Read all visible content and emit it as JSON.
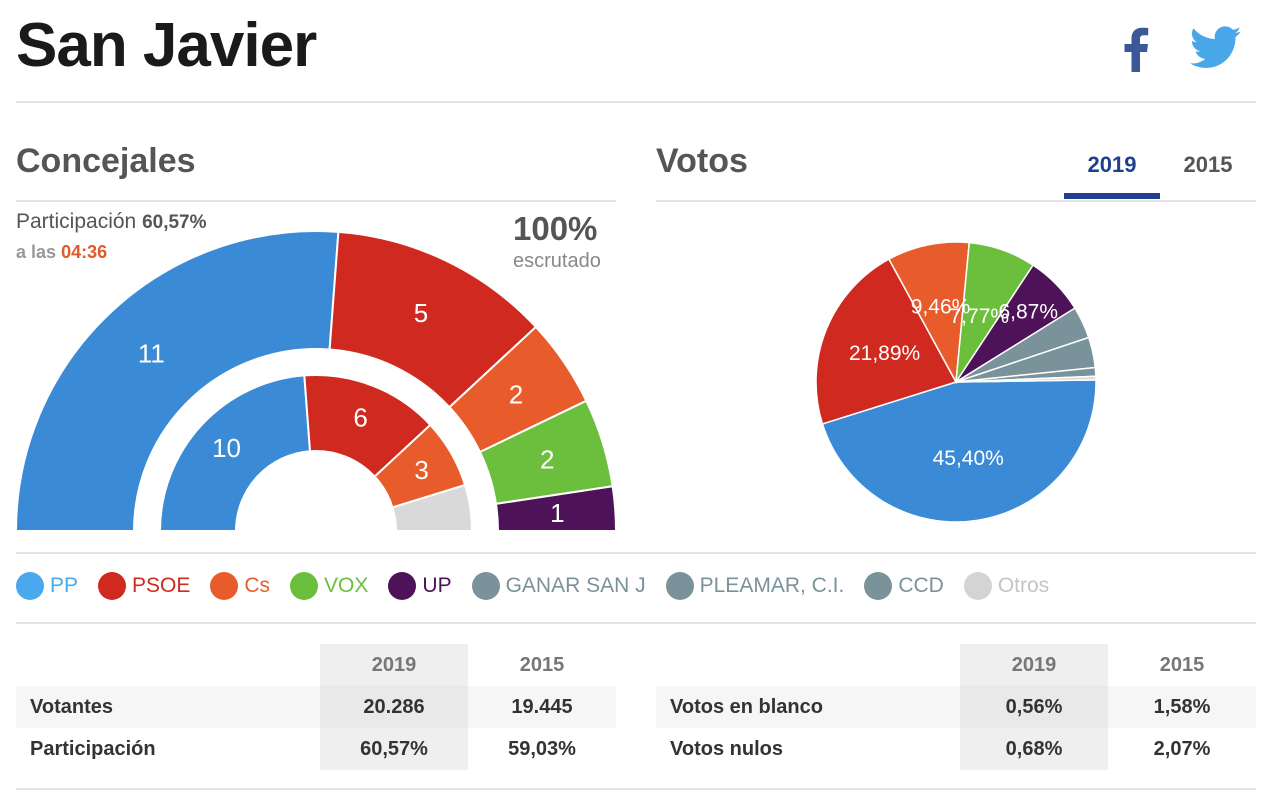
{
  "header": {
    "title": "San Javier"
  },
  "concejales": {
    "title": "Concejales",
    "participacion_label": "Participación",
    "participacion_value": "60,57%",
    "hora_prefix": "a las",
    "hora": "04:36",
    "escrutado_pct": "100%",
    "escrutado_label": "escrutado"
  },
  "votos": {
    "title": "Votos",
    "tabs": [
      {
        "label": "2019",
        "active": true
      },
      {
        "label": "2015",
        "active": false
      }
    ]
  },
  "colors": {
    "PP": "#3b8ad6",
    "PSOE": "#d02a20",
    "Cs": "#e85c2c",
    "VOX": "#6cbf3c",
    "UP": "#4d1257",
    "GANAR": "#7a9299",
    "PLEAMAR": "#7a9299",
    "CCD": "#7a9299",
    "Otros": "#d9d9d9"
  },
  "chart_data": [
    {
      "type": "pie",
      "title": "Concejales 2019",
      "subtype": "hemicycle-outer",
      "categories": [
        "PP",
        "PSOE",
        "Cs",
        "VOX",
        "UP"
      ],
      "values": [
        11,
        5,
        2,
        2,
        1
      ]
    },
    {
      "type": "pie",
      "title": "Concejales 2015",
      "subtype": "hemicycle-inner",
      "categories": [
        "PP",
        "PSOE",
        "Cs",
        "Otros"
      ],
      "values": [
        10,
        6,
        3,
        2
      ]
    },
    {
      "type": "pie",
      "title": "Votos 2019",
      "categories": [
        "PP",
        "PSOE",
        "Cs",
        "VOX",
        "UP",
        "GANAR SAN J",
        "PLEAMAR, C.I.",
        "CCD",
        "Otros"
      ],
      "values": [
        45.4,
        21.89,
        9.46,
        7.77,
        6.87,
        3.7,
        3.5,
        1.0,
        0.41
      ],
      "labels": [
        "45,40%",
        "21,89%",
        "9,46%",
        "7,77%",
        "6,87%",
        "",
        "",
        "",
        ""
      ]
    }
  ],
  "legend": [
    {
      "name": "PP",
      "color": "#4aa8ee"
    },
    {
      "name": "PSOE",
      "color": "#d02a20"
    },
    {
      "name": "Cs",
      "color": "#e85c2c"
    },
    {
      "name": "VOX",
      "color": "#6cbf3c"
    },
    {
      "name": "UP",
      "color": "#4d1257"
    },
    {
      "name": "GANAR SAN J",
      "color": "#7a9299"
    },
    {
      "name": "PLEAMAR, C.I.",
      "color": "#7a9299"
    },
    {
      "name": "CCD",
      "color": "#7a9299"
    },
    {
      "name": "Otros",
      "color": "#d4d4d4"
    }
  ],
  "table_left": {
    "years": [
      "2019",
      "2015"
    ],
    "rows": [
      {
        "label": "Votantes",
        "v2019": "20.286",
        "v2015": "19.445"
      },
      {
        "label": "Participación",
        "v2019": "60,57%",
        "v2015": "59,03%"
      }
    ]
  },
  "table_right": {
    "years": [
      "2019",
      "2015"
    ],
    "rows": [
      {
        "label": "Votos en blanco",
        "v2019": "0,56%",
        "v2015": "1,58%"
      },
      {
        "label": "Votos nulos",
        "v2019": "0,68%",
        "v2015": "2,07%"
      }
    ]
  }
}
